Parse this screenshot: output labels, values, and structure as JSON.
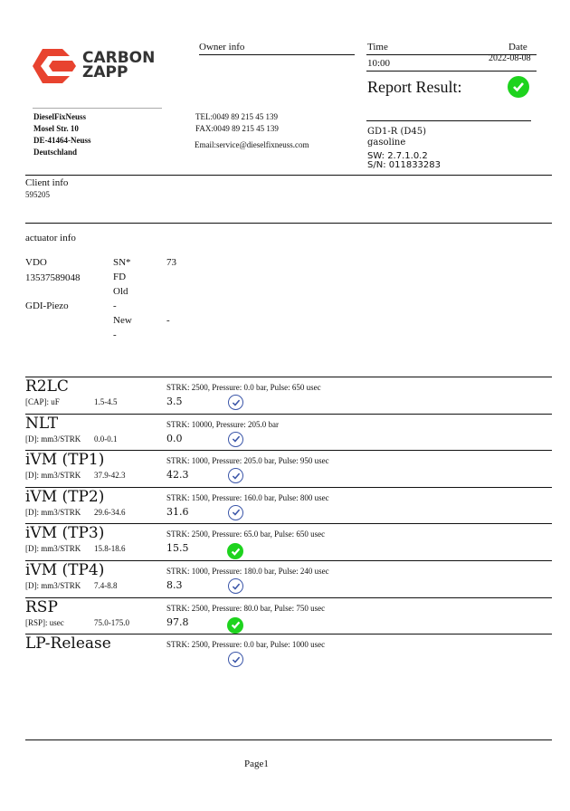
{
  "logo": {
    "line1": "CARBON",
    "line2": "ZAPP",
    "color": "#e8432f"
  },
  "owner": {
    "heading": "Owner info",
    "tel": "TEL:0049 89 215 45 139",
    "fax": "FAX:0049 89 215 45 139",
    "email": "Email:service@dieselfixneuss.com"
  },
  "company": {
    "name": "DieselFixNeuss",
    "street": "Mosel Str. 10",
    "city": "DE-41464-Neuss",
    "country": "Deutschland"
  },
  "time": {
    "label": "Time",
    "value": "10:00"
  },
  "date": {
    "label": "Date",
    "value": "2022-08-08"
  },
  "report": {
    "label": "Report Result:",
    "status": "pass"
  },
  "device": {
    "model": "GD1-R (D45)",
    "fuel": "gasoline",
    "sw": "SW: 2.7.1.0.2",
    "sn": "S/N: 011833283"
  },
  "client": {
    "heading": "Client info",
    "id": "595205"
  },
  "actuator": {
    "heading": "actuator info",
    "brand": "VDO",
    "part": "13537589048",
    "type": "GDI-Piezo",
    "sn_label": "SN*",
    "sn_value": "73",
    "fd": "FD",
    "old": "Old",
    "old_value": "-",
    "new": "New",
    "new_value": "-",
    "new_value2": "-"
  },
  "tests": [
    {
      "name": "R2LC",
      "unit": "[CAP]: uF",
      "range": "1.5-4.5",
      "params": "STRK: 2500, Pressure: 0.0 bar, Pulse: 650 usec",
      "value": "3.5",
      "status": "check"
    },
    {
      "name": "NLT",
      "unit": "[D]: mm3/STRK",
      "range": "0.0-0.1",
      "params": "STRK: 10000, Pressure: 205.0 bar",
      "value": "0.0",
      "status": "check"
    },
    {
      "name": "iVM (TP1)",
      "unit": "[D]: mm3/STRK",
      "range": "37.9-42.3",
      "params": "STRK: 1000, Pressure: 205.0 bar, Pulse: 950 usec",
      "value": "42.3",
      "status": "check"
    },
    {
      "name": "iVM (TP2)",
      "unit": "[D]: mm3/STRK",
      "range": "29.6-34.6",
      "params": "STRK: 1500, Pressure: 160.0 bar, Pulse: 800 usec",
      "value": "31.6",
      "status": "check"
    },
    {
      "name": "iVM (TP3)",
      "unit": "[D]: mm3/STRK",
      "range": "15.8-18.6",
      "params": "STRK: 2500, Pressure: 65.0 bar, Pulse: 650 usec",
      "value": "15.5",
      "status": "ok"
    },
    {
      "name": "iVM (TP4)",
      "unit": "[D]: mm3/STRK",
      "range": "7.4-8.8",
      "params": "STRK: 1000, Pressure: 180.0 bar, Pulse: 240 usec",
      "value": "8.3",
      "status": "check"
    },
    {
      "name": "RSP",
      "unit": "[RSP]: usec",
      "range": "75.0-175.0",
      "params": "STRK: 2500, Pressure: 80.0 bar, Pulse: 750 usec",
      "value": "97.8",
      "status": "ok"
    },
    {
      "name": "LP-Release",
      "unit": "",
      "range": "",
      "params": "STRK: 2500, Pressure: 0.0 bar, Pulse: 1000 usec",
      "value": "",
      "status": "check"
    }
  ],
  "footer": {
    "page": "Page1"
  }
}
